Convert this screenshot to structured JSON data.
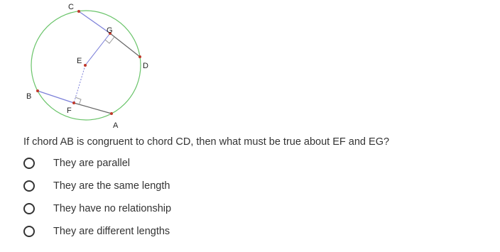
{
  "diagram": {
    "labels": [
      "A",
      "B",
      "C",
      "D",
      "E",
      "F",
      "G"
    ]
  },
  "question": "If chord AB is congruent to chord CD, then what must be true about EF and EG?",
  "options": [
    "They are parallel",
    "They are the same length",
    "They have no relationship",
    "They are different lengths"
  ]
}
